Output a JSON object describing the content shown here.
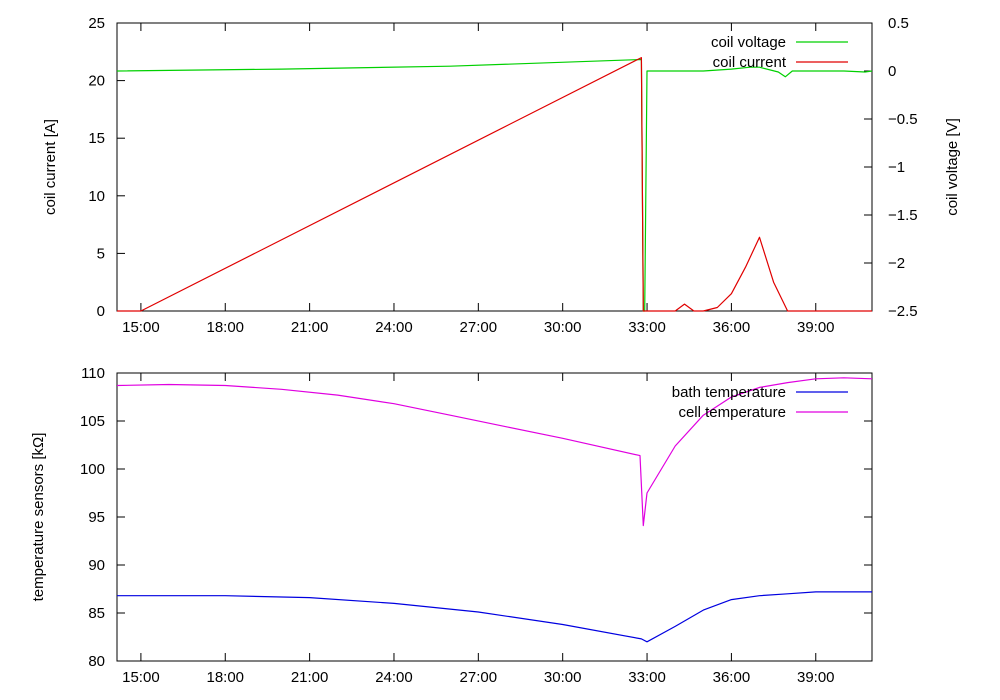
{
  "chart_data": [
    {
      "type": "line",
      "x_ticks": [
        "15:00",
        "18:00",
        "21:00",
        "24:00",
        "27:00",
        "30:00",
        "33:00",
        "36:00",
        "39:00"
      ],
      "y_ticks": [
        "0",
        "5",
        "10",
        "15",
        "20",
        "25"
      ],
      "y2_ticks": [
        "−2.5",
        "−2",
        "−1.5",
        "−1",
        "−0.5",
        "0",
        "0.5"
      ],
      "xlim": [
        "14:09",
        "41:00"
      ],
      "ylim": [
        0,
        25
      ],
      "y2lim": [
        -2.5,
        0.5
      ],
      "ylabel": "coil current [A]",
      "y2label": "coil voltage [V]",
      "legend_position": "top-right",
      "grid": false,
      "series": [
        {
          "name": "coil voltage",
          "axis": "right",
          "color": "#00d000",
          "x": [
            "14:09",
            "20:00",
            "26:00",
            "32:48",
            "32:52",
            "32:55",
            "33:00",
            "35:00",
            "36:00",
            "36:40",
            "37:00",
            "37:40",
            "37:55",
            "38:10",
            "39:00",
            "40:00",
            "40:45",
            "41:00"
          ],
          "y": [
            0,
            0.02,
            0.05,
            0.12,
            -2.5,
            -2.5,
            0,
            0,
            0.02,
            0.04,
            0.04,
            -0.01,
            -0.06,
            0,
            0,
            0,
            -0.01,
            0
          ]
        },
        {
          "name": "coil current",
          "axis": "left",
          "color": "#e00000",
          "x": [
            "14:09",
            "15:00",
            "32:48",
            "32:52",
            "33:00",
            "34:00",
            "34:20",
            "34:40",
            "35:00",
            "35:30",
            "36:00",
            "36:30",
            "37:00",
            "37:30",
            "38:00",
            "39:00",
            "41:00"
          ],
          "y": [
            0,
            0,
            22,
            0,
            0,
            0,
            0.6,
            0,
            0,
            0.3,
            1.5,
            3.8,
            6.4,
            2.5,
            0,
            0,
            0
          ]
        }
      ]
    },
    {
      "type": "line",
      "x_ticks": [
        "15:00",
        "18:00",
        "21:00",
        "24:00",
        "27:00",
        "30:00",
        "33:00",
        "36:00",
        "39:00"
      ],
      "y_ticks": [
        "80",
        "85",
        "90",
        "95",
        "100",
        "105",
        "110"
      ],
      "xlim": [
        "14:09",
        "41:00"
      ],
      "ylim": [
        80,
        110
      ],
      "ylabel": "temperature sensors [kΩ]",
      "legend_position": "top-right",
      "grid": false,
      "series": [
        {
          "name": "bath temperature",
          "color": "#0000e0",
          "x": [
            "14:09",
            "18:00",
            "21:00",
            "24:00",
            "27:00",
            "30:00",
            "32:48",
            "33:00",
            "34:00",
            "35:00",
            "36:00",
            "37:00",
            "38:00",
            "39:00",
            "41:00"
          ],
          "y": [
            86.8,
            86.8,
            86.6,
            86,
            85.1,
            83.8,
            82.3,
            82,
            83.6,
            85.3,
            86.4,
            86.8,
            87,
            87.2,
            87.2
          ]
        },
        {
          "name": "cell temperature",
          "color": "#e000e0",
          "x": [
            "14:09",
            "16:00",
            "18:00",
            "20:00",
            "22:00",
            "24:00",
            "26:00",
            "28:00",
            "30:00",
            "32:45",
            "32:52",
            "33:00",
            "34:00",
            "35:00",
            "36:00",
            "37:00",
            "38:00",
            "39:00",
            "40:00",
            "41:00"
          ],
          "y": [
            108.7,
            108.8,
            108.7,
            108.3,
            107.7,
            106.8,
            105.6,
            104.4,
            103.2,
            101.4,
            94.1,
            97.5,
            102.4,
            105.6,
            107.5,
            108.5,
            109,
            109.4,
            109.5,
            109.4
          ]
        }
      ]
    }
  ]
}
